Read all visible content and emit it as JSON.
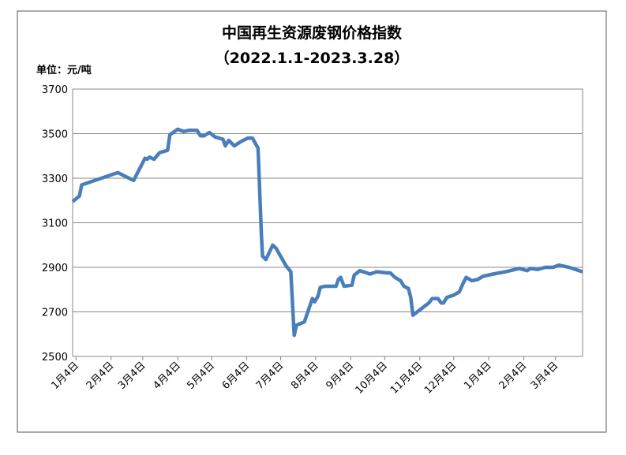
{
  "chart_data": {
    "type": "line",
    "title": "中国再生资源废钢价格指数",
    "subtitle": "（2022.1.1-2023.3.28）",
    "y_label": "单位：元/吨",
    "color": "#4a7ebb",
    "grid": true,
    "xlim": [
      0,
      451
    ],
    "xticks": [
      {
        "value": 3,
        "label": "1月4日"
      },
      {
        "value": 34,
        "label": "2月4日"
      },
      {
        "value": 62,
        "label": "3月4日"
      },
      {
        "value": 93,
        "label": "4月4日"
      },
      {
        "value": 123,
        "label": "5月4日"
      },
      {
        "value": 154,
        "label": "6月4日"
      },
      {
        "value": 184,
        "label": "7月4日"
      },
      {
        "value": 215,
        "label": "8月4日"
      },
      {
        "value": 246,
        "label": "9月4日"
      },
      {
        "value": 276,
        "label": "10月4日"
      },
      {
        "value": 307,
        "label": "11月4日"
      },
      {
        "value": 337,
        "label": "12月4日"
      },
      {
        "value": 368,
        "label": "1月4日"
      },
      {
        "value": 399,
        "label": "2月4日"
      },
      {
        "value": 427,
        "label": "3月4日"
      }
    ],
    "ylim": [
      2500,
      3700
    ],
    "yticks": [
      2500,
      2700,
      2900,
      3100,
      3300,
      3500,
      3700
    ],
    "x": [
      0,
      6,
      8,
      40,
      46,
      54,
      57,
      61,
      64,
      66,
      68,
      72,
      77,
      84,
      86,
      93,
      98,
      103,
      110,
      113,
      116,
      121,
      126,
      133,
      135,
      138,
      143,
      149,
      155,
      159,
      164,
      167,
      168,
      171,
      177,
      180,
      189,
      193,
      196,
      198,
      205,
      208,
      212,
      214,
      217,
      219,
      223,
      233,
      235,
      237,
      240,
      247,
      249,
      254,
      263,
      269,
      278,
      281,
      285,
      290,
      293,
      297,
      299,
      301,
      315,
      318,
      323,
      326,
      328,
      331,
      337,
      342,
      345,
      348,
      353,
      358,
      363,
      372,
      383,
      395,
      402,
      405,
      411,
      418,
      425,
      430,
      439,
      451
    ],
    "values": [
      3195,
      3220,
      3270,
      3325,
      3310,
      3290,
      3320,
      3360,
      3390,
      3385,
      3395,
      3385,
      3415,
      3425,
      3495,
      3520,
      3510,
      3515,
      3515,
      3490,
      3490,
      3505,
      3485,
      3475,
      3445,
      3470,
      3445,
      3465,
      3480,
      3480,
      3435,
      3040,
      2950,
      2935,
      3000,
      2985,
      2905,
      2880,
      2595,
      2640,
      2655,
      2700,
      2760,
      2745,
      2770,
      2810,
      2815,
      2815,
      2845,
      2855,
      2815,
      2820,
      2865,
      2885,
      2870,
      2880,
      2875,
      2875,
      2855,
      2840,
      2815,
      2805,
      2765,
      2685,
      2740,
      2760,
      2760,
      2740,
      2740,
      2765,
      2775,
      2790,
      2825,
      2855,
      2840,
      2845,
      2860,
      2870,
      2880,
      2895,
      2885,
      2895,
      2890,
      2900,
      2900,
      2910,
      2900,
      2880
    ]
  }
}
